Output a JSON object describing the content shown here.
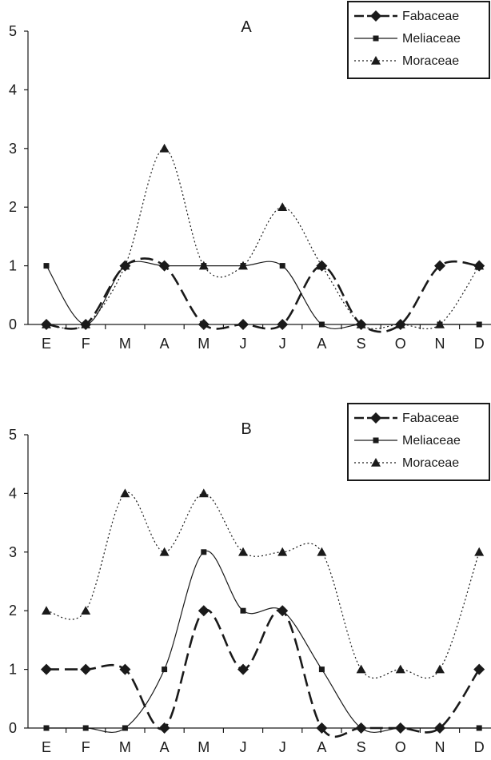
{
  "chart_data": [
    {
      "type": "line",
      "title": "A",
      "categories": [
        "E",
        "F",
        "M",
        "A",
        "M",
        "J",
        "J",
        "A",
        "S",
        "O",
        "N",
        "D"
      ],
      "ylim": [
        0,
        5
      ],
      "yticks": [
        "0",
        "1",
        "2",
        "3",
        "4",
        "5"
      ],
      "grid": false,
      "legend_position": "top-right",
      "series": [
        {
          "name": "Fabaceae",
          "style": "dashed",
          "marker": "diamond",
          "values": [
            0,
            0,
            1,
            1,
            0,
            0,
            0,
            1,
            0,
            0,
            1,
            1
          ]
        },
        {
          "name": "Meliaceae",
          "style": "solid",
          "marker": "square",
          "values": [
            1,
            0,
            1,
            1,
            1,
            1,
            1,
            0,
            0,
            0,
            0,
            0
          ]
        },
        {
          "name": "Moraceae",
          "style": "dotted",
          "marker": "triangle",
          "values": [
            0,
            0,
            1,
            3,
            1,
            1,
            2,
            1,
            0,
            0,
            0,
            1
          ]
        }
      ]
    },
    {
      "type": "line",
      "title": "B",
      "categories": [
        "E",
        "F",
        "M",
        "A",
        "M",
        "J",
        "J",
        "A",
        "S",
        "O",
        "N",
        "D"
      ],
      "ylim": [
        0,
        5
      ],
      "yticks": [
        "0",
        "1",
        "2",
        "3",
        "4",
        "5"
      ],
      "grid": false,
      "legend_position": "top-right",
      "series": [
        {
          "name": "Fabaceae",
          "style": "dashed",
          "marker": "diamond",
          "values": [
            1,
            1,
            1,
            0,
            2,
            1,
            2,
            0,
            0,
            0,
            0,
            1
          ]
        },
        {
          "name": "Meliaceae",
          "style": "solid",
          "marker": "square",
          "values": [
            0,
            0,
            0,
            1,
            3,
            2,
            2,
            1,
            0,
            0,
            0,
            0
          ]
        },
        {
          "name": "Moraceae",
          "style": "dotted",
          "marker": "triangle",
          "values": [
            2,
            2,
            4,
            3,
            4,
            3,
            3,
            3,
            1,
            1,
            1,
            3
          ]
        }
      ]
    }
  ],
  "colors": {
    "ink": "#1a1a1a",
    "background": "#ffffff"
  }
}
